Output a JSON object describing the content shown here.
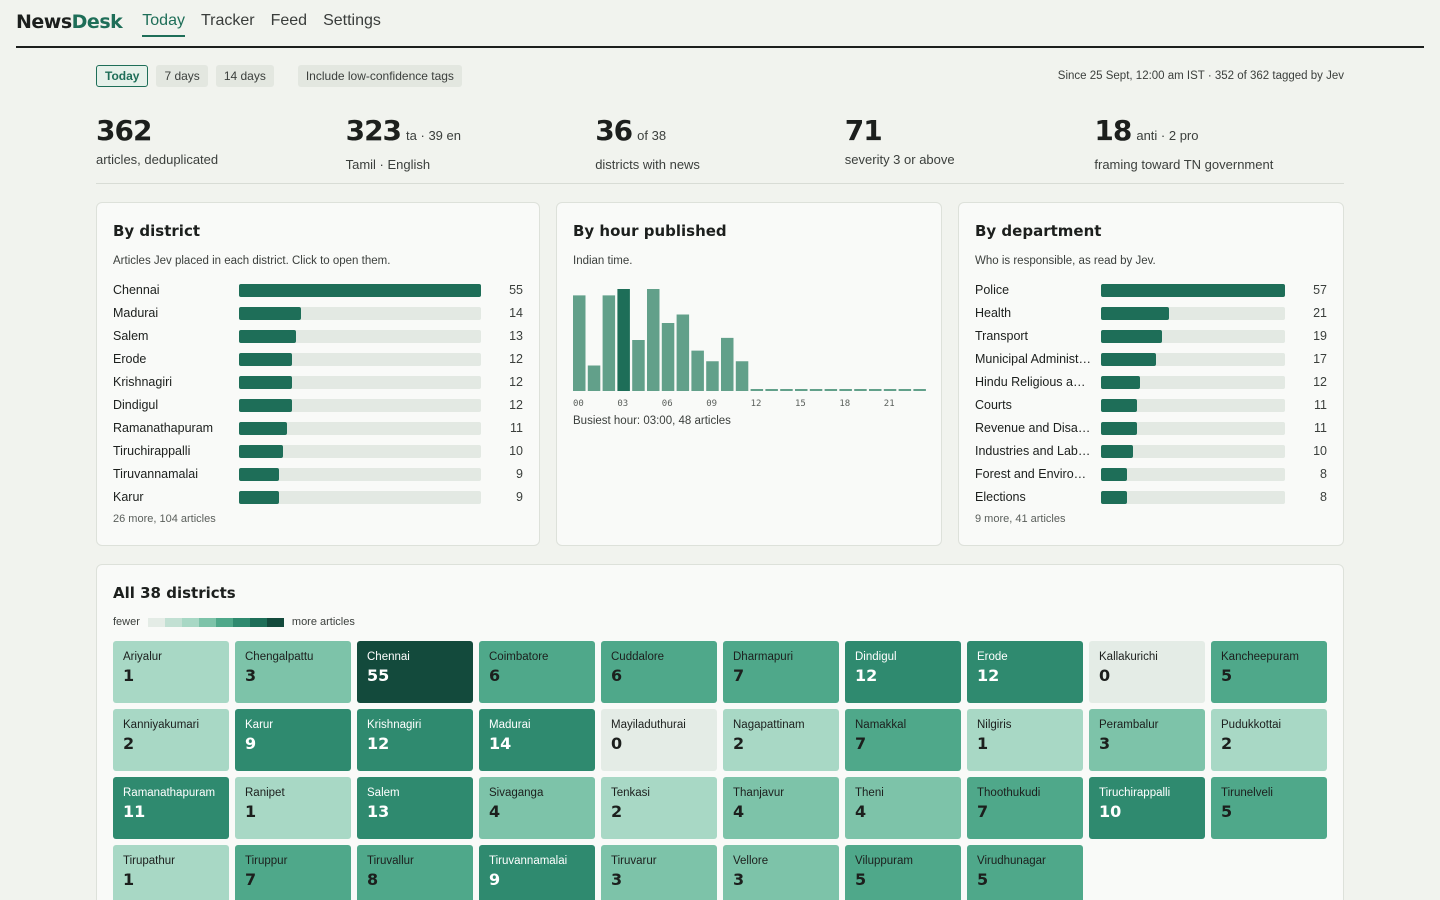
{
  "app": {
    "logo_part1": "News",
    "logo_part2": "Desk"
  },
  "nav": [
    {
      "label": "Today",
      "active": true
    },
    {
      "label": "Tracker",
      "active": false
    },
    {
      "label": "Feed",
      "active": false
    },
    {
      "label": "Settings",
      "active": false
    }
  ],
  "filters": {
    "ranges": [
      {
        "label": "Today",
        "active": true
      },
      {
        "label": "7 days",
        "active": false
      },
      {
        "label": "14 days",
        "active": false
      }
    ],
    "low_confidence_label": "Include low-confidence tags",
    "meta": "Since 25 Sept, 12:00 am IST · 352 of 362 tagged by Jev"
  },
  "stats": [
    {
      "value": "362",
      "sub": "",
      "label": "articles, deduplicated"
    },
    {
      "value": "323",
      "sub": "ta · 39 en",
      "label": "Tamil · English"
    },
    {
      "value": "36",
      "sub": "of 38",
      "label": "districts with news"
    },
    {
      "value": "71",
      "sub": "",
      "label": "severity 3 or above"
    },
    {
      "value": "18",
      "sub": "anti · 2 pro",
      "label": "framing toward TN government"
    }
  ],
  "by_district": {
    "title": "By district",
    "description": "Articles Jev placed in each district. Click to open them.",
    "max": 55,
    "items": [
      {
        "label": "Chennai",
        "value": 55
      },
      {
        "label": "Madurai",
        "value": 14
      },
      {
        "label": "Salem",
        "value": 13
      },
      {
        "label": "Erode",
        "value": 12
      },
      {
        "label": "Krishnagiri",
        "value": 12
      },
      {
        "label": "Dindigul",
        "value": 12
      },
      {
        "label": "Ramanathapuram",
        "value": 11
      },
      {
        "label": "Tiruchirappalli",
        "value": 10
      },
      {
        "label": "Tiruvannamalai",
        "value": 9
      },
      {
        "label": "Karur",
        "value": 9
      }
    ],
    "footer": "26 more, 104 articles"
  },
  "by_hour": {
    "title": "By hour published",
    "description": "Indian time.",
    "busiest": "Busiest hour: 03:00, 48 articles",
    "chart_data": {
      "type": "bar",
      "categories": [
        "00",
        "01",
        "02",
        "03",
        "04",
        "05",
        "06",
        "07",
        "08",
        "09",
        "10",
        "11",
        "12",
        "13",
        "14",
        "15",
        "16",
        "17",
        "18",
        "19",
        "20",
        "21",
        "22",
        "23"
      ],
      "tick_labels": [
        "00",
        "03",
        "06",
        "09",
        "12",
        "15",
        "18",
        "21"
      ],
      "values": [
        45,
        12,
        45,
        48,
        24,
        48,
        32,
        36,
        19,
        14,
        25,
        14,
        0,
        0,
        0,
        0,
        0,
        0,
        0,
        0,
        0,
        0,
        0,
        0
      ],
      "highlight_index": 3,
      "ylim": [
        0,
        48
      ],
      "colors": {
        "bar": "#62a08a",
        "highlight": "#1e6e58"
      }
    }
  },
  "by_department": {
    "title": "By department",
    "description": "Who is responsible, as read by Jev.",
    "max": 57,
    "items": [
      {
        "label": "Police",
        "value": 57
      },
      {
        "label": "Health",
        "value": 21
      },
      {
        "label": "Transport",
        "value": 19
      },
      {
        "label": "Municipal Administ…",
        "value": 17
      },
      {
        "label": "Hindu Religious an…",
        "value": 12
      },
      {
        "label": "Courts",
        "value": 11
      },
      {
        "label": "Revenue and Disas…",
        "value": 11
      },
      {
        "label": "Industries and Lab…",
        "value": 10
      },
      {
        "label": "Forest and Environ…",
        "value": 8
      },
      {
        "label": "Elections",
        "value": 8
      }
    ],
    "footer": "9 more, 41 articles"
  },
  "all_districts": {
    "title": "All 38 districts",
    "legend_fewer": "fewer",
    "legend_more": "more articles",
    "scale_colors": [
      "#e4ece6",
      "#c2e0d3",
      "#a8d8c5",
      "#7dc3a9",
      "#4fa88a",
      "#2f8a6f",
      "#1e6e58",
      "#134a3c"
    ],
    "tiles": [
      {
        "name": "Ariyalur",
        "value": 1
      },
      {
        "name": "Chengalpattu",
        "value": 3
      },
      {
        "name": "Chennai",
        "value": 55
      },
      {
        "name": "Coimbatore",
        "value": 6
      },
      {
        "name": "Cuddalore",
        "value": 6
      },
      {
        "name": "Dharmapuri",
        "value": 7
      },
      {
        "name": "Dindigul",
        "value": 12
      },
      {
        "name": "Erode",
        "value": 12
      },
      {
        "name": "Kallakurichi",
        "value": 0
      },
      {
        "name": "Kancheepuram",
        "value": 5
      },
      {
        "name": "Kanniyakumari",
        "value": 2
      },
      {
        "name": "Karur",
        "value": 9
      },
      {
        "name": "Krishnagiri",
        "value": 12
      },
      {
        "name": "Madurai",
        "value": 14
      },
      {
        "name": "Mayiladuthurai",
        "value": 0
      },
      {
        "name": "Nagapattinam",
        "value": 2
      },
      {
        "name": "Namakkal",
        "value": 7
      },
      {
        "name": "Nilgiris",
        "value": 1
      },
      {
        "name": "Perambalur",
        "value": 3
      },
      {
        "name": "Pudukkottai",
        "value": 2
      },
      {
        "name": "Ramanathapuram",
        "value": 11
      },
      {
        "name": "Ranipet",
        "value": 1
      },
      {
        "name": "Salem",
        "value": 13
      },
      {
        "name": "Sivaganga",
        "value": 4
      },
      {
        "name": "Tenkasi",
        "value": 2
      },
      {
        "name": "Thanjavur",
        "value": 4
      },
      {
        "name": "Theni",
        "value": 4
      },
      {
        "name": "Thoothukudi",
        "value": 7
      },
      {
        "name": "Tiruchirappalli",
        "value": 10
      },
      {
        "name": "Tirunelveli",
        "value": 5
      },
      {
        "name": "Tirupathur",
        "value": 1
      },
      {
        "name": "Tiruppur",
        "value": 7
      },
      {
        "name": "Tiruvallur",
        "value": 8
      },
      {
        "name": "Tiruvannamalai",
        "value": 9
      },
      {
        "name": "Tiruvarur",
        "value": 3
      },
      {
        "name": "Vellore",
        "value": 3
      },
      {
        "name": "Viluppuram",
        "value": 5
      },
      {
        "name": "Virudhunagar",
        "value": 5
      }
    ]
  }
}
